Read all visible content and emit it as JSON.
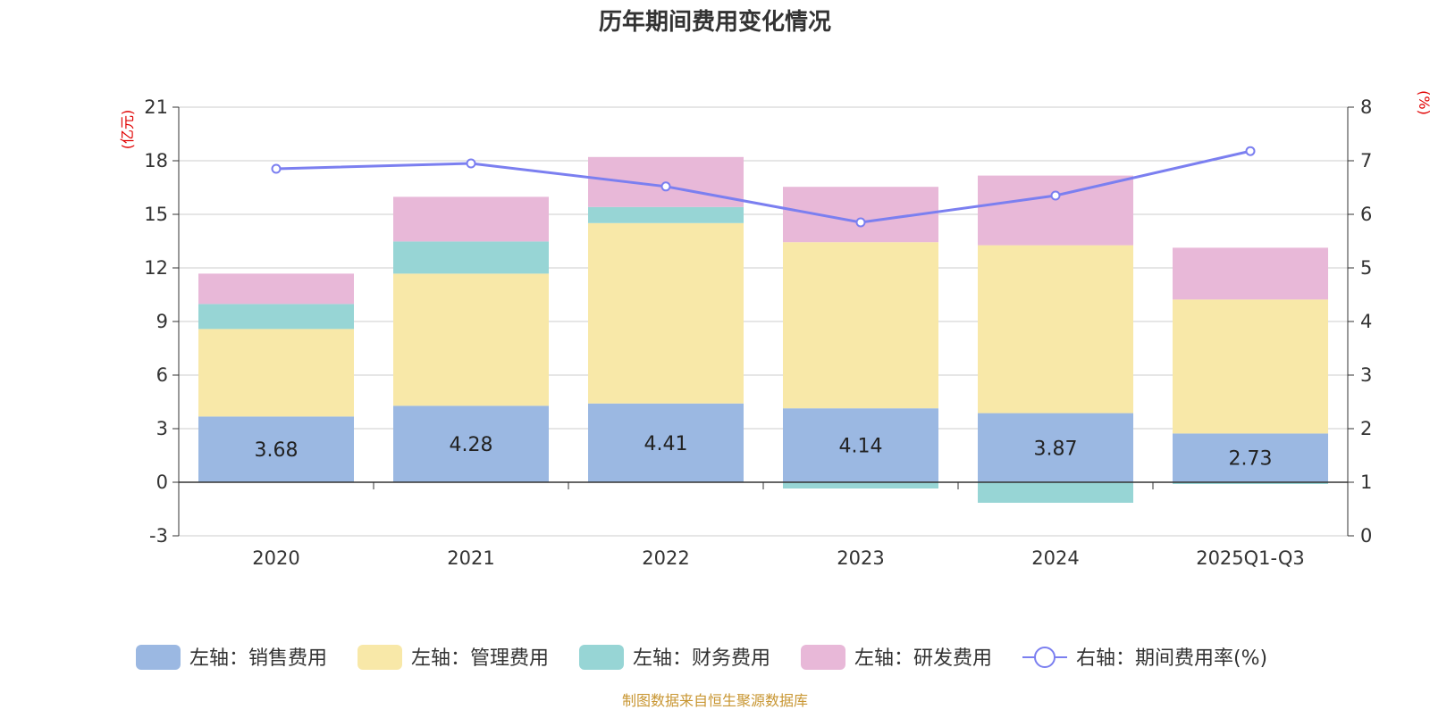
{
  "chart_data": {
    "type": "bar",
    "title": "历年期间费用变化情况",
    "source": "制图数据来自恒生聚源数据库",
    "categories": [
      "2020",
      "2021",
      "2022",
      "2023",
      "2024",
      "2025Q1-Q3"
    ],
    "left_axis": {
      "unit": "(亿元)",
      "min": -3,
      "max": 21,
      "step": 3,
      "ticks": [
        "-3",
        "0",
        "3",
        "6",
        "9",
        "12",
        "15",
        "18",
        "21"
      ]
    },
    "right_axis": {
      "unit": "(%)",
      "min": 0,
      "max": 8,
      "step": 1,
      "ticks": [
        "0",
        "1",
        "2",
        "3",
        "4",
        "5",
        "6",
        "7",
        "8"
      ]
    },
    "series": [
      {
        "name": "左轴：销售费用",
        "kind": "bar",
        "axis": "left",
        "color": "#9bb8e2",
        "values": [
          3.68,
          4.28,
          4.41,
          4.14,
          3.87,
          2.73
        ],
        "labels": [
          "3.68",
          "4.28",
          "4.41",
          "4.14",
          "3.87",
          "2.73"
        ]
      },
      {
        "name": "左轴：管理费用",
        "kind": "bar",
        "axis": "left",
        "color": "#f8e8a8",
        "values": [
          4.9,
          7.4,
          10.1,
          9.3,
          9.4,
          7.5
        ]
      },
      {
        "name": "左轴：财务费用",
        "kind": "bar",
        "axis": "left",
        "color": "#97d5d5",
        "values": [
          1.4,
          1.8,
          0.9,
          -0.35,
          -1.15,
          -0.1
        ]
      },
      {
        "name": "左轴：研发费用",
        "kind": "bar",
        "axis": "left",
        "color": "#e8b8d8",
        "values": [
          1.7,
          2.5,
          2.8,
          3.1,
          3.9,
          2.9
        ]
      },
      {
        "name": "右轴：期间费用率(%)",
        "kind": "line",
        "axis": "right",
        "color": "#7b7ff0",
        "values": [
          6.85,
          6.95,
          6.52,
          5.85,
          6.35,
          7.18
        ]
      }
    ]
  }
}
